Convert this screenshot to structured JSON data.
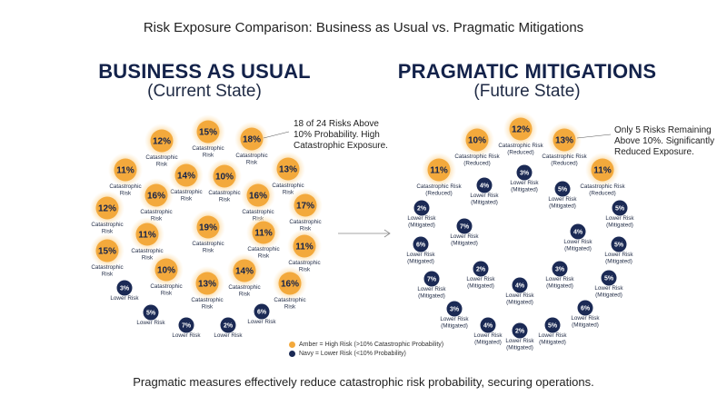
{
  "title": "Risk Exposure Comparison: Business as Usual vs. Pragmatic Mitigations",
  "left": {
    "header": "BUSINESS AS USUAL",
    "subheader": "(Current State)",
    "note_lines": [
      "18 of 24 Risks Above",
      "10% Probability. High",
      "Catastrophic Exposure."
    ]
  },
  "right": {
    "header": "PRAGMATIC MITIGATIONS",
    "subheader": "(Future State)",
    "note_lines": [
      "Only 5 Risks Remaining",
      "Above 10%. Significantly",
      "Reduced Exposure."
    ]
  },
  "legend": {
    "amber": "Amber = High Risk (>10% Catastrophic Probability)",
    "navy": "Navy = Lower Risk (<10% Probability)"
  },
  "footer": "Pragmatic measures effectively reduce catastrophic risk probability, securing operations.",
  "colors": {
    "amber": "#f3a93c",
    "amber_glow": "#fbd79a",
    "navy": "#1b2a55",
    "text": "#13224a"
  }
}
